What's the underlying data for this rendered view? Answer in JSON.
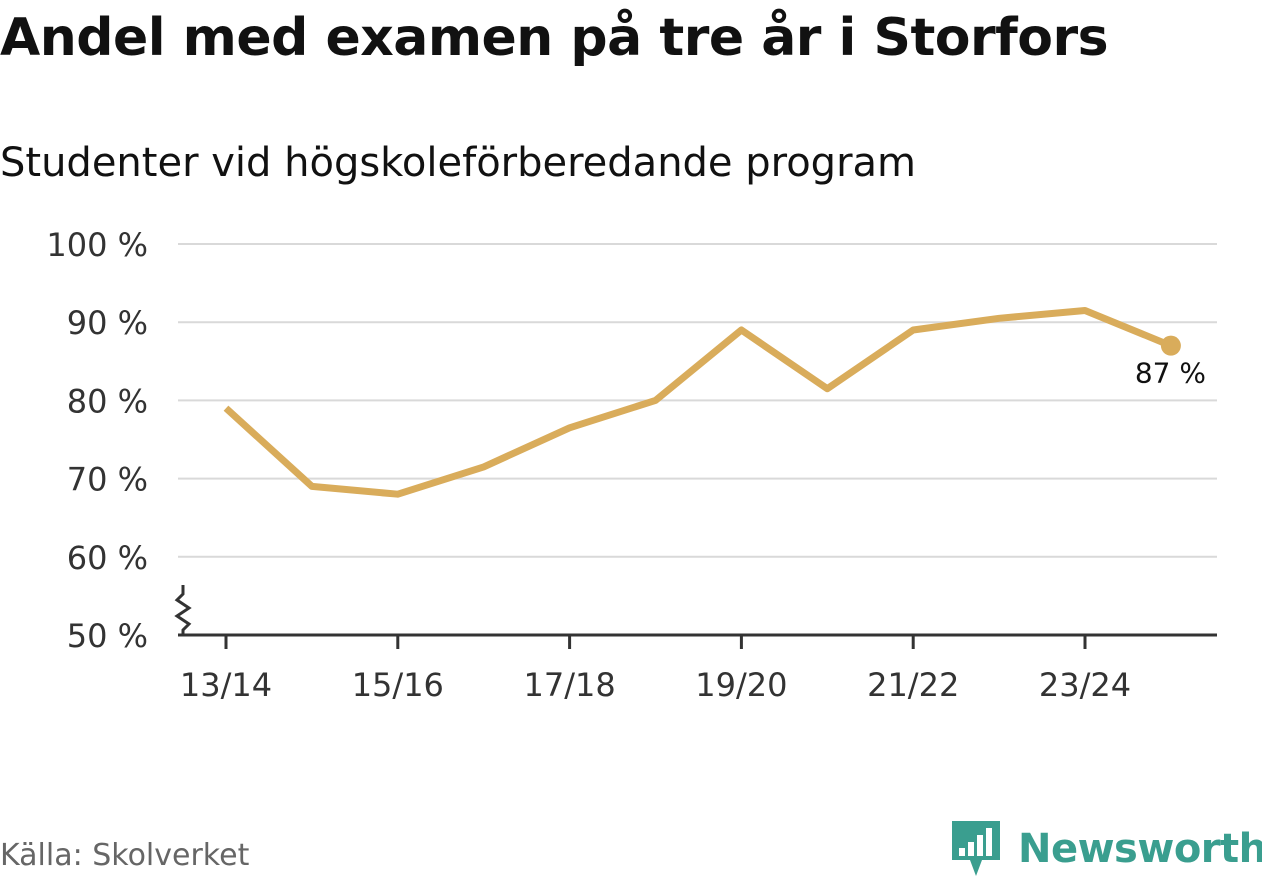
{
  "title": "Andel med examen på tre år i Storfors",
  "subtitle": "Studenter vid högskoleförberedande program",
  "source": "Källa: Skolverket",
  "brand": {
    "name": "Newsworthy",
    "icon": "newsworthy-logo-icon",
    "color": "#3a9e8f"
  },
  "chart_data": {
    "type": "line",
    "x": [
      "13/14",
      "14/15",
      "15/16",
      "16/17",
      "17/18",
      "18/19",
      "19/20",
      "20/21",
      "21/22",
      "22/23",
      "23/24",
      "24/25"
    ],
    "xtick_labels": [
      "13/14",
      "15/16",
      "17/18",
      "19/20",
      "21/22",
      "23/24"
    ],
    "series": [
      {
        "name": "Andel med examen på tre år",
        "values": [
          79,
          69,
          68,
          71.5,
          76.5,
          80,
          89,
          81.5,
          89,
          90.5,
          91.5,
          87
        ],
        "color": "#d9ac5b"
      }
    ],
    "ylim": [
      50,
      100
    ],
    "yticks": [
      100,
      90,
      80,
      70,
      60,
      50
    ],
    "ytick_labels": [
      "100 %",
      "90 %",
      "80 %",
      "70 %",
      "60 %",
      "50 %"
    ],
    "end_label": "87 %",
    "axis_break": true,
    "grid": true,
    "xlabel": "",
    "ylabel": ""
  }
}
